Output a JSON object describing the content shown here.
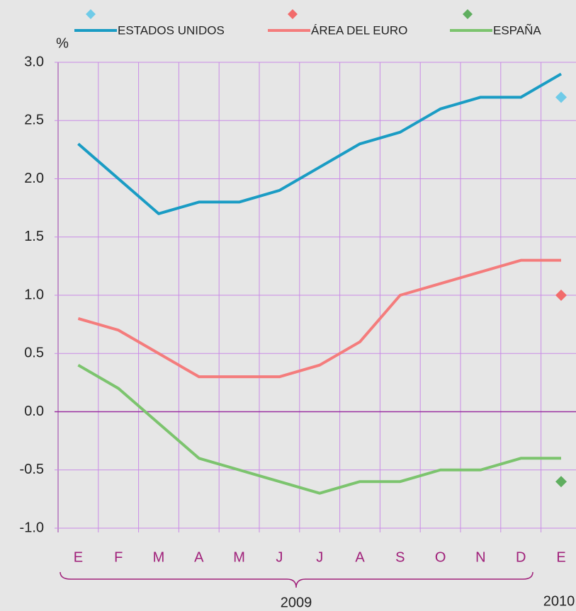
{
  "chart_data": {
    "type": "line",
    "y_label": "%",
    "categories": [
      "E",
      "F",
      "M",
      "A",
      "M",
      "J",
      "J",
      "A",
      "S",
      "O",
      "N",
      "D",
      "E"
    ],
    "series": [
      {
        "name": "ESTADOS UNIDOS",
        "color": "#1a9cc4",
        "marker_color": "#6fcbe8",
        "values": [
          2.3,
          2.0,
          1.7,
          1.8,
          1.8,
          1.9,
          2.1,
          2.3,
          2.4,
          2.6,
          2.7,
          2.7,
          2.9
        ],
        "projection": 2.7
      },
      {
        "name": "ÁREA DEL EURO",
        "color": "#f47c7c",
        "marker_color": "#f26b6b",
        "values": [
          0.8,
          0.7,
          0.5,
          0.3,
          0.3,
          0.3,
          0.4,
          0.6,
          1.0,
          1.1,
          1.2,
          1.3,
          1.3
        ],
        "projection": 1.0
      },
      {
        "name": "ESPAÑA",
        "color": "#7cc46e",
        "marker_color": "#5fae5f",
        "values": [
          0.4,
          0.2,
          -0.1,
          -0.4,
          -0.5,
          -0.6,
          -0.7,
          -0.6,
          -0.6,
          -0.5,
          -0.5,
          -0.4,
          -0.4
        ],
        "projection": -0.6
      }
    ],
    "ylim": [
      -1,
      3
    ],
    "yticks": [
      {
        "value": 3,
        "label": "3.0"
      },
      2.5,
      {
        "value": 2,
        "label": "2.0"
      },
      1.5,
      {
        "value": 1,
        "label": "1.0"
      },
      0.5,
      {
        "value": 0,
        "label": "0.0"
      },
      -0.5,
      {
        "value": -1,
        "label": "-1.0"
      }
    ],
    "grid": true,
    "annotations": [
      "2009",
      "2010"
    ]
  }
}
